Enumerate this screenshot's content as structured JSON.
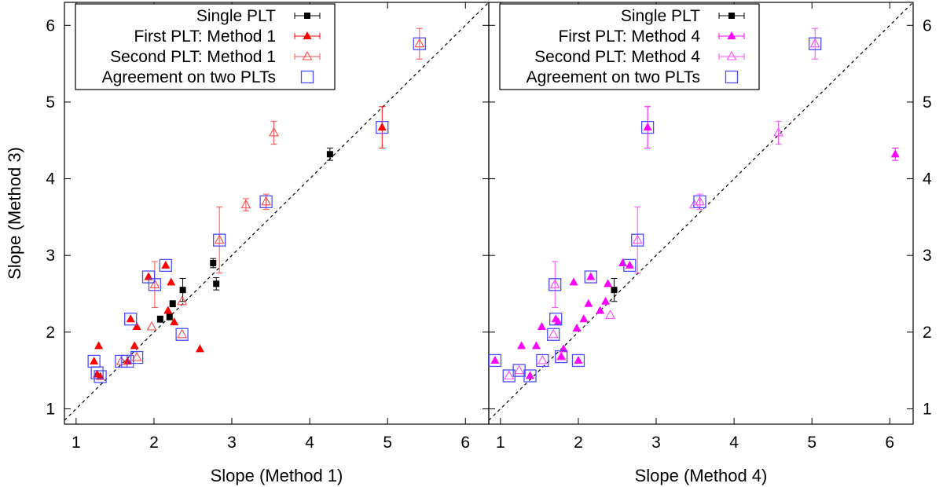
{
  "chart_data": [
    {
      "type": "scatter",
      "xlabel": "Slope (Method 1)",
      "ylabel": "Slope (Method 3)",
      "xlim": [
        0.85,
        6.3
      ],
      "ylim": [
        0.8,
        6.3
      ],
      "xticks": [
        1,
        2,
        3,
        4,
        5,
        6
      ],
      "yticks": [
        1,
        2,
        3,
        4,
        5,
        6
      ],
      "reference_line": "y = x (dashed)",
      "legend_position": "top-left",
      "legend": [
        {
          "label": "Single PLT",
          "marker": "filled-square",
          "color": "#000000"
        },
        {
          "label": "First PLT: Method 1",
          "marker": "filled-triangle",
          "color": "#ff0000"
        },
        {
          "label": "Second PLT: Method 1",
          "marker": "open-triangle",
          "color": "#ff4c4c"
        },
        {
          "label": "Agreement on two PLTs",
          "marker": "open-square",
          "color": "#4d4dff"
        }
      ],
      "series": [
        {
          "name": "Single PLT",
          "points": [
            {
              "x": 2.08,
              "y": 2.17,
              "yerr": 0.04
            },
            {
              "x": 2.2,
              "y": 2.2,
              "yerr": 0.04
            },
            {
              "x": 2.24,
              "y": 2.37,
              "yerr": 0.04
            },
            {
              "x": 2.37,
              "y": 2.55,
              "yerr": 0.15
            },
            {
              "x": 2.76,
              "y": 2.9,
              "yerr": 0.06
            },
            {
              "x": 2.8,
              "y": 2.63,
              "yerr": 0.08
            },
            {
              "x": 4.26,
              "y": 4.32,
              "yerr": 0.08
            }
          ]
        },
        {
          "name": "First PLT: Method 1",
          "points": [
            {
              "x": 1.23,
              "y": 1.62
            },
            {
              "x": 1.29,
              "y": 1.82
            },
            {
              "x": 1.27,
              "y": 1.45
            },
            {
              "x": 1.31,
              "y": 1.42
            },
            {
              "x": 1.66,
              "y": 1.62
            },
            {
              "x": 1.7,
              "y": 2.17
            },
            {
              "x": 1.75,
              "y": 1.82
            },
            {
              "x": 1.78,
              "y": 2.07
            },
            {
              "x": 1.93,
              "y": 2.72
            },
            {
              "x": 2.15,
              "y": 2.87
            },
            {
              "x": 2.18,
              "y": 2.28
            },
            {
              "x": 2.22,
              "y": 2.65
            },
            {
              "x": 2.26,
              "y": 2.13
            },
            {
              "x": 2.59,
              "y": 1.78
            },
            {
              "x": 4.93,
              "y": 4.67,
              "yerr": 0.27
            }
          ]
        },
        {
          "name": "Second PLT: Method 1",
          "points": [
            {
              "x": 1.58,
              "y": 1.62
            },
            {
              "x": 1.78,
              "y": 1.67
            },
            {
              "x": 1.97,
              "y": 2.07
            },
            {
              "x": 2.01,
              "y": 2.62,
              "yerr": 0.3
            },
            {
              "x": 2.36,
              "y": 1.97
            },
            {
              "x": 2.36,
              "y": 2.4
            },
            {
              "x": 2.84,
              "y": 3.2,
              "yerr": 0.43
            },
            {
              "x": 3.18,
              "y": 3.66,
              "yerr": 0.08
            },
            {
              "x": 3.44,
              "y": 3.7,
              "yerr": 0.1
            },
            {
              "x": 3.54,
              "y": 4.6,
              "yerr": 0.15
            },
            {
              "x": 5.41,
              "y": 5.76,
              "yerr": 0.2
            }
          ]
        },
        {
          "name": "Agreement on two PLTs",
          "points": [
            {
              "x": 1.23,
              "y": 1.62
            },
            {
              "x": 1.27,
              "y": 1.47
            },
            {
              "x": 1.31,
              "y": 1.42
            },
            {
              "x": 1.58,
              "y": 1.62
            },
            {
              "x": 1.66,
              "y": 1.62
            },
            {
              "x": 1.78,
              "y": 1.67
            },
            {
              "x": 1.7,
              "y": 2.17
            },
            {
              "x": 1.93,
              "y": 2.72
            },
            {
              "x": 2.01,
              "y": 2.62
            },
            {
              "x": 2.15,
              "y": 2.87
            },
            {
              "x": 2.36,
              "y": 1.97
            },
            {
              "x": 2.84,
              "y": 3.2
            },
            {
              "x": 3.44,
              "y": 3.7
            },
            {
              "x": 4.93,
              "y": 4.67
            },
            {
              "x": 5.41,
              "y": 5.76
            }
          ]
        }
      ]
    },
    {
      "type": "scatter",
      "xlabel": "Slope (Method 4)",
      "ylabel": "Slope (Method 3)",
      "xlim": [
        0.85,
        6.3
      ],
      "ylim": [
        0.8,
        6.3
      ],
      "xticks": [
        1,
        2,
        3,
        4,
        5,
        6
      ],
      "yticks": [
        1,
        2,
        3,
        4,
        5,
        6
      ],
      "reference_line": "y = x (dashed)",
      "legend_position": "top-left",
      "legend": [
        {
          "label": "Single PLT",
          "marker": "filled-square",
          "color": "#000000"
        },
        {
          "label": "First PLT: Method 4",
          "marker": "filled-triangle",
          "color": "#ff00ff"
        },
        {
          "label": "Second PLT: Method 4",
          "marker": "open-triangle",
          "color": "#ff4cff"
        },
        {
          "label": "Agreement on two PLTs",
          "marker": "open-square",
          "color": "#4d4dff"
        }
      ],
      "series": [
        {
          "name": "Single PLT",
          "points": [
            {
              "x": 2.46,
              "y": 2.55,
              "yerr": 0.15
            }
          ]
        },
        {
          "name": "First PLT: Method 4",
          "points": [
            {
              "x": 0.93,
              "y": 1.63
            },
            {
              "x": 1.27,
              "y": 1.82
            },
            {
              "x": 1.38,
              "y": 1.43
            },
            {
              "x": 1.46,
              "y": 1.82
            },
            {
              "x": 1.53,
              "y": 2.07
            },
            {
              "x": 1.71,
              "y": 2.17
            },
            {
              "x": 1.74,
              "y": 2.13
            },
            {
              "x": 1.78,
              "y": 1.68
            },
            {
              "x": 1.81,
              "y": 1.78
            },
            {
              "x": 1.94,
              "y": 2.65
            },
            {
              "x": 1.98,
              "y": 2.05
            },
            {
              "x": 2.0,
              "y": 1.63
            },
            {
              "x": 2.07,
              "y": 2.17
            },
            {
              "x": 2.13,
              "y": 2.37
            },
            {
              "x": 2.16,
              "y": 2.72
            },
            {
              "x": 2.28,
              "y": 2.28
            },
            {
              "x": 2.35,
              "y": 2.4
            },
            {
              "x": 2.38,
              "y": 2.63
            },
            {
              "x": 2.57,
              "y": 2.9
            },
            {
              "x": 2.66,
              "y": 2.87
            },
            {
              "x": 2.89,
              "y": 4.67,
              "yerr": 0.27
            },
            {
              "x": 6.07,
              "y": 4.32,
              "yerr": 0.08
            }
          ]
        },
        {
          "name": "Second PLT: Method 4",
          "points": [
            {
              "x": 1.11,
              "y": 1.43
            },
            {
              "x": 1.24,
              "y": 1.5
            },
            {
              "x": 1.54,
              "y": 1.63
            },
            {
              "x": 1.68,
              "y": 1.97
            },
            {
              "x": 1.7,
              "y": 2.62,
              "yerr": 0.3
            },
            {
              "x": 1.78,
              "y": 1.68
            },
            {
              "x": 2.41,
              "y": 2.22
            },
            {
              "x": 2.76,
              "y": 3.2,
              "yerr": 0.43
            },
            {
              "x": 3.49,
              "y": 3.66
            },
            {
              "x": 3.56,
              "y": 3.7,
              "yerr": 0.1
            },
            {
              "x": 4.57,
              "y": 4.6,
              "yerr": 0.15
            },
            {
              "x": 5.04,
              "y": 5.76,
              "yerr": 0.2
            }
          ]
        },
        {
          "name": "Agreement on two PLTs",
          "points": [
            {
              "x": 0.93,
              "y": 1.63
            },
            {
              "x": 1.11,
              "y": 1.43
            },
            {
              "x": 1.24,
              "y": 1.5
            },
            {
              "x": 1.38,
              "y": 1.43
            },
            {
              "x": 1.54,
              "y": 1.63
            },
            {
              "x": 1.68,
              "y": 1.97
            },
            {
              "x": 1.7,
              "y": 2.62
            },
            {
              "x": 1.71,
              "y": 2.17
            },
            {
              "x": 1.78,
              "y": 1.68
            },
            {
              "x": 2.0,
              "y": 1.63
            },
            {
              "x": 2.16,
              "y": 2.72
            },
            {
              "x": 2.66,
              "y": 2.87
            },
            {
              "x": 2.76,
              "y": 3.2
            },
            {
              "x": 2.89,
              "y": 4.67
            },
            {
              "x": 3.56,
              "y": 3.7
            },
            {
              "x": 5.04,
              "y": 5.76
            }
          ]
        }
      ]
    }
  ]
}
